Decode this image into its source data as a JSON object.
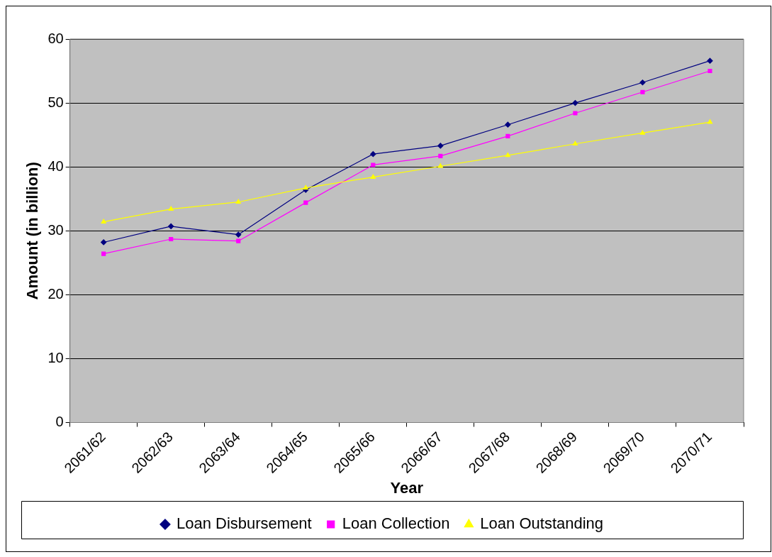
{
  "chart_data": {
    "type": "line",
    "xlabel": "Year",
    "ylabel": "Amount (in billion)",
    "categories": [
      "2061/62",
      "2062/63",
      "2063/64",
      "2064/65",
      "2065/66",
      "2066/67",
      "2067/68",
      "2068/69",
      "2069/70",
      "2070/71"
    ],
    "series": [
      {
        "name": "Loan Disbursement",
        "color": "#000080",
        "marker": "diamond",
        "values": [
          28.2,
          30.7,
          29.4,
          36.4,
          42.0,
          43.3,
          46.6,
          50.0,
          53.2,
          56.6
        ]
      },
      {
        "name": "Loan Collection",
        "color": "#ff00ff",
        "marker": "square",
        "values": [
          26.4,
          28.7,
          28.4,
          34.4,
          40.3,
          41.7,
          44.8,
          48.4,
          51.7,
          55.0
        ]
      },
      {
        "name": "Loan Outstanding",
        "color": "#ffff00",
        "marker": "triangle",
        "values": [
          31.4,
          33.4,
          34.5,
          36.7,
          38.4,
          40.1,
          41.8,
          43.6,
          45.3,
          47.0
        ]
      }
    ],
    "ylim": [
      0,
      60
    ],
    "yticks": [
      0,
      10,
      20,
      30,
      40,
      50,
      60
    ],
    "grid": "y",
    "legend": "bottom"
  }
}
